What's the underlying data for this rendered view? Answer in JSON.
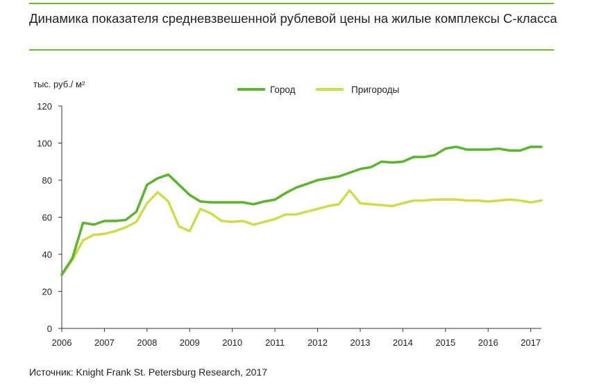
{
  "title": "Динамика показателя средневзвешенной рублевой цены на жилые комплексы С-класса",
  "source": "Источник: Knight Frank St. Petersburg Research, 2017",
  "colors": {
    "rule": "#6fb92f",
    "city": "#5db52f",
    "suburbs": "#cfdc4c",
    "axis": "#333333"
  },
  "chart_data": {
    "type": "line",
    "title": "Динамика показателя средневзвешенной рублевой цены на жилые комплексы С-класса",
    "xlabel": "",
    "ylabel": "тыс. руб./ м²",
    "ylim": [
      0,
      120
    ],
    "xlim": [
      2006,
      2017.25
    ],
    "yticks": [
      "0",
      "20",
      "40",
      "60",
      "80",
      "100",
      "120"
    ],
    "xticks": [
      "2006",
      "2007",
      "2008",
      "2009",
      "2010",
      "2011",
      "2012",
      "2013",
      "2014",
      "2015",
      "2016",
      "2017"
    ],
    "legend_position": "top-center",
    "x": [
      2006.0,
      2006.25,
      2006.5,
      2006.75,
      2007.0,
      2007.25,
      2007.5,
      2007.75,
      2008.0,
      2008.25,
      2008.5,
      2008.75,
      2009.0,
      2009.25,
      2009.5,
      2009.75,
      2010.0,
      2010.25,
      2010.5,
      2010.75,
      2011.0,
      2011.25,
      2011.5,
      2011.75,
      2012.0,
      2012.25,
      2012.5,
      2012.75,
      2013.0,
      2013.25,
      2013.5,
      2013.75,
      2014.0,
      2014.25,
      2014.5,
      2014.75,
      2015.0,
      2015.25,
      2015.5,
      2015.75,
      2016.0,
      2016.25,
      2016.5,
      2016.75,
      2017.0,
      2017.25
    ],
    "series": [
      {
        "name": "Город",
        "values": [
          29,
          38,
          57,
          56,
          58,
          58,
          58.5,
          63,
          77.5,
          81,
          83,
          77.5,
          72,
          68.5,
          68,
          68,
          68,
          68,
          67,
          68.5,
          69.5,
          73,
          76,
          78,
          80,
          81,
          82,
          84,
          86,
          87,
          90,
          89.5,
          90,
          92.5,
          92.5,
          93.5,
          97,
          98,
          96.5,
          96.5,
          96.5,
          97,
          96,
          96,
          98,
          98
        ]
      },
      {
        "name": "Пригороды",
        "values": [
          29,
          37,
          47.5,
          50.5,
          51,
          52.5,
          54.5,
          57.5,
          67.5,
          73.5,
          68.5,
          55,
          52.5,
          64.5,
          62,
          58,
          57.5,
          58,
          56,
          57.5,
          59,
          61.5,
          61.5,
          63,
          64.5,
          66,
          67,
          74.5,
          67.5,
          67,
          66.5,
          66,
          67.5,
          69,
          69,
          69.5,
          69.5,
          69.5,
          69,
          69,
          68.5,
          69,
          69.5,
          69,
          68,
          69
        ]
      }
    ]
  }
}
